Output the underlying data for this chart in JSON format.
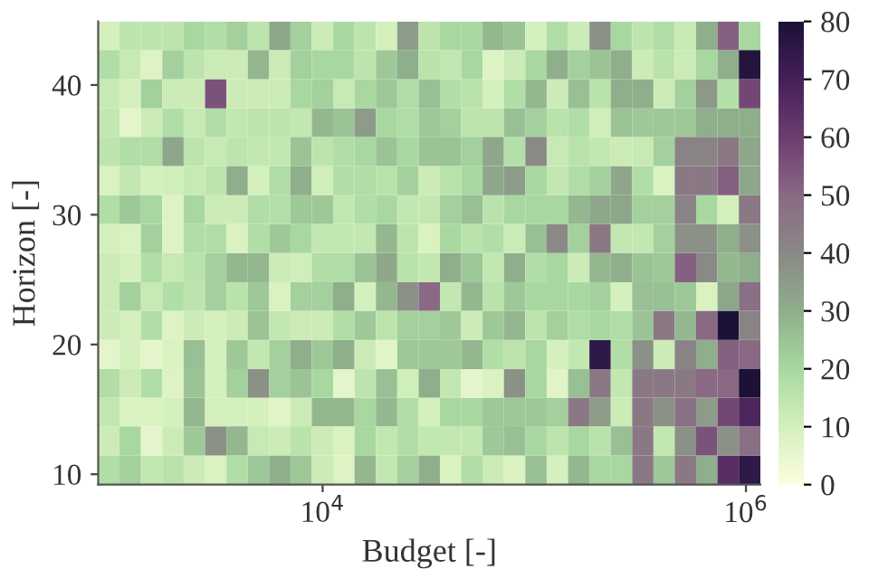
{
  "chart_data": {
    "type": "heatmap",
    "xlabel": "Budget [-]",
    "ylabel": "Horizon [-]",
    "log": "x",
    "x": [
      977,
      1233,
      1556,
      1963,
      2477,
      3126,
      3945,
      4977,
      6281,
      7910,
      9977,
      12590,
      15890,
      20040,
      25290,
      31920,
      40180,
      50700,
      63970,
      80720,
      101900,
      128500,
      162200,
      204600,
      258200,
      325800,
      410200,
      517600,
      653100,
      824100,
      1040000
    ],
    "y": [
      43.8,
      41.6,
      39.3,
      37.1,
      34.9,
      32.6,
      30.4,
      28.2,
      25.9,
      23.7,
      21.5,
      19.2,
      17.0,
      14.8,
      12.6,
      10.3
    ],
    "xlim": [
      870,
      1170000
    ],
    "xticks": [
      {
        "value": 10000,
        "label": "10$^{4}$"
      },
      {
        "value": 1000000,
        "label": "10$^{6}$"
      }
    ],
    "ylim": [
      9.2,
      44.9
    ],
    "yticks": [
      10,
      20,
      30,
      40
    ],
    "clim": [
      0,
      80
    ],
    "cticks": [
      0,
      10,
      20,
      30,
      40,
      50,
      60,
      70,
      80
    ],
    "grid": false,
    "cells": [
      [
        10,
        15,
        15,
        15,
        20,
        18,
        22,
        15,
        32,
        22,
        12,
        20,
        15,
        10,
        35,
        15,
        20,
        20,
        28,
        25,
        10,
        18,
        12,
        38,
        20,
        15,
        18,
        13,
        30,
        52,
        20
      ],
      [
        18,
        13,
        8,
        22,
        15,
        12,
        12,
        28,
        12,
        22,
        20,
        20,
        15,
        24,
        30,
        16,
        14,
        20,
        8,
        12,
        20,
        30,
        22,
        25,
        30,
        12,
        16,
        12,
        20,
        30,
        78
      ],
      [
        13,
        10,
        22,
        12,
        12,
        55,
        12,
        12,
        12,
        20,
        22,
        13,
        20,
        24,
        18,
        26,
        18,
        16,
        10,
        18,
        28,
        12,
        26,
        16,
        30,
        30,
        12,
        22,
        36,
        17,
        58
      ],
      [
        14,
        6,
        12,
        18,
        13,
        18,
        14,
        15,
        15,
        14,
        28,
        25,
        35,
        20,
        18,
        24,
        22,
        15,
        15,
        26,
        22,
        16,
        18,
        11,
        25,
        24,
        24,
        24,
        30,
        30,
        30
      ],
      [
        15,
        18,
        18,
        32,
        15,
        13,
        15,
        14,
        14,
        25,
        15,
        18,
        20,
        25,
        20,
        25,
        25,
        22,
        32,
        17,
        40,
        13,
        16,
        14,
        12,
        13,
        22,
        42,
        42,
        45,
        32
      ],
      [
        9,
        14,
        10,
        11,
        13,
        15,
        30,
        10,
        18,
        30,
        11,
        18,
        18,
        16,
        22,
        12,
        16,
        20,
        32,
        35,
        20,
        14,
        18,
        22,
        32,
        18,
        9,
        45,
        45,
        52,
        32
      ],
      [
        18,
        24,
        20,
        8,
        20,
        12,
        12,
        18,
        17,
        24,
        24,
        14,
        18,
        20,
        14,
        14,
        22,
        26,
        16,
        20,
        20,
        20,
        28,
        32,
        32,
        22,
        22,
        42,
        20,
        10,
        45
      ],
      [
        10,
        9,
        22,
        8,
        18,
        18,
        9,
        18,
        24,
        20,
        14,
        14,
        14,
        28,
        15,
        9,
        20,
        16,
        18,
        12,
        26,
        40,
        22,
        45,
        14,
        14,
        22,
        38,
        38,
        30,
        38
      ],
      [
        12,
        10,
        18,
        13,
        16,
        22,
        28,
        28,
        12,
        11,
        18,
        18,
        25,
        32,
        16,
        14,
        30,
        24,
        14,
        30,
        18,
        20,
        12,
        28,
        30,
        25,
        24,
        52,
        40,
        28,
        30
      ],
      [
        12,
        22,
        13,
        18,
        15,
        22,
        16,
        24,
        9,
        22,
        22,
        30,
        10,
        28,
        38,
        50,
        14,
        28,
        16,
        24,
        20,
        20,
        20,
        22,
        10,
        26,
        26,
        24,
        9,
        32,
        48
      ],
      [
        12,
        10,
        18,
        8,
        12,
        10,
        12,
        25,
        14,
        12,
        12,
        18,
        24,
        15,
        22,
        22,
        24,
        12,
        24,
        28,
        15,
        22,
        18,
        20,
        18,
        25,
        45,
        28,
        50,
        80,
        42
      ],
      [
        6,
        10,
        6,
        9,
        26,
        10,
        24,
        14,
        22,
        30,
        24,
        30,
        12,
        7,
        24,
        24,
        24,
        28,
        18,
        15,
        20,
        10,
        14,
        75,
        18,
        38,
        12,
        42,
        30,
        52,
        50
      ],
      [
        18,
        12,
        18,
        8,
        25,
        10,
        22,
        38,
        22,
        25,
        20,
        6,
        15,
        26,
        11,
        30,
        14,
        6,
        9,
        38,
        20,
        7,
        26,
        45,
        14,
        45,
        45,
        45,
        50,
        50,
        80
      ],
      [
        14,
        9,
        9,
        10,
        28,
        10,
        10,
        10,
        7,
        12,
        28,
        28,
        20,
        28,
        18,
        10,
        20,
        20,
        24,
        24,
        24,
        22,
        45,
        35,
        12,
        45,
        38,
        48,
        35,
        58,
        68
      ],
      [
        12,
        20,
        6,
        12,
        24,
        38,
        28,
        13,
        12,
        16,
        12,
        9,
        20,
        14,
        18,
        14,
        14,
        14,
        24,
        26,
        20,
        15,
        20,
        16,
        26,
        45,
        14,
        38,
        55,
        38,
        48
      ],
      [
        18,
        22,
        14,
        16,
        12,
        9,
        18,
        24,
        30,
        24,
        12,
        8,
        28,
        14,
        22,
        30,
        9,
        18,
        12,
        9,
        26,
        10,
        28,
        20,
        20,
        45,
        24,
        45,
        30,
        65,
        75
      ]
    ]
  }
}
